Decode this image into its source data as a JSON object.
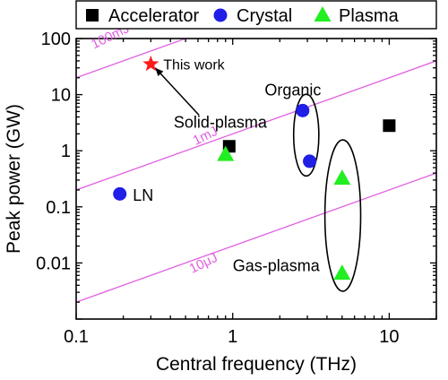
{
  "chart_data": {
    "type": "scatter",
    "xlabel": "Central frequency (THz)",
    "ylabel": "Peak power (GW)",
    "x_scale": "log",
    "y_scale": "log",
    "xlim": [
      0.1,
      20
    ],
    "ylim": [
      0.001,
      100
    ],
    "x_ticks": [
      {
        "value": 0.1,
        "label": "0.1"
      },
      {
        "value": 1,
        "label": "1"
      },
      {
        "value": 10,
        "label": "10"
      }
    ],
    "y_ticks": [
      {
        "value": 0.01,
        "label": "0.01"
      },
      {
        "value": 0.1,
        "label": "0.1"
      },
      {
        "value": 1,
        "label": "1"
      },
      {
        "value": 10,
        "label": "10"
      },
      {
        "value": 100,
        "label": "100"
      }
    ],
    "legend": {
      "placement": "top",
      "entries": [
        {
          "label": "Accelerator",
          "marker": "square",
          "color": "#000000"
        },
        {
          "label": "Crystal",
          "marker": "circle",
          "color": "#1f1fe6"
        },
        {
          "label": "Plasma",
          "marker": "triangle",
          "color": "#22ee22"
        }
      ]
    },
    "series": [
      {
        "name": "Accelerator",
        "marker": "square",
        "color": "#000000",
        "points": [
          {
            "x": 0.95,
            "y": 1.2
          },
          {
            "x": 10,
            "y": 2.8
          }
        ]
      },
      {
        "name": "Crystal",
        "marker": "circle",
        "color": "#1f1fe6",
        "points": [
          {
            "x": 0.19,
            "y": 0.17
          },
          {
            "x": 2.8,
            "y": 5.2
          },
          {
            "x": 3.1,
            "y": 0.65
          }
        ]
      },
      {
        "name": "Plasma",
        "marker": "triangle",
        "color": "#22ee22",
        "points": [
          {
            "x": 0.9,
            "y": 0.85
          },
          {
            "x": 5,
            "y": 0.32
          },
          {
            "x": 5,
            "y": 0.0065
          }
        ]
      },
      {
        "marker": "star",
        "color": "#ff1a1a",
        "points": [
          {
            "x": 0.3,
            "y": 35
          }
        ]
      }
    ],
    "energy_lines": {
      "color": "#e060e0",
      "lines": [
        {
          "label": "100mJ",
          "points": [
            {
              "x": 0.1,
              "y": 20
            },
            {
              "x": 20,
              "y": 4000
            }
          ]
        },
        {
          "label": "1mJ",
          "points": [
            {
              "x": 0.1,
              "y": 0.2
            },
            {
              "x": 20,
              "y": 40
            }
          ]
        },
        {
          "label": "10μJ",
          "points": [
            {
              "x": 0.1,
              "y": 0.002
            },
            {
              "x": 20,
              "y": 0.4
            }
          ]
        }
      ]
    },
    "annotations": [
      {
        "text": "This work",
        "x": 0.36,
        "y": 35
      },
      {
        "text": "Solid-plasma",
        "x": 0.42,
        "y": 3.2
      },
      {
        "text": "LN",
        "x": 0.23,
        "y": 0.16
      },
      {
        "text": "Organic",
        "x": 1.6,
        "y": 12
      },
      {
        "text": "Gas-plasma",
        "x": 1.0,
        "y": 0.009
      }
    ],
    "arrow": {
      "from": {
        "x": 0.61,
        "y": 4.3
      },
      "to": {
        "x": 0.32,
        "y": 30
      }
    },
    "groups": [
      {
        "label": "Organic",
        "center": {
          "x": 2.95,
          "y": 1.9
        },
        "x_range": [
          2.45,
          3.55
        ],
        "y_range": [
          0.35,
          10
        ]
      },
      {
        "label": "Gas-plasma",
        "center": {
          "x": 5.05,
          "y": 0.07
        },
        "x_range": [
          3.9,
          6.6
        ],
        "y_range": [
          0.0028,
          1.4
        ]
      }
    ]
  }
}
